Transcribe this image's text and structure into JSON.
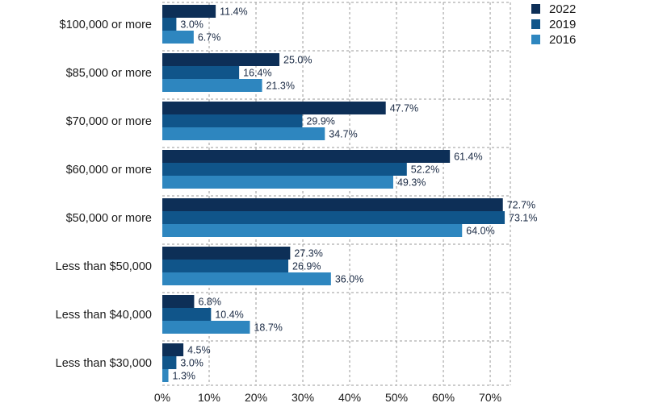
{
  "chart_data": {
    "type": "bar",
    "orientation": "horizontal",
    "categories": [
      "$100,000 or more",
      "$85,000 or more",
      "$70,000 or more",
      "$60,000 or more",
      "$50,000 or more",
      "Less than $50,000",
      "Less than $40,000",
      "Less than $30,000"
    ],
    "series": [
      {
        "name": "2022",
        "color": "#0d2f57",
        "values": [
          11.4,
          25.0,
          47.7,
          61.4,
          72.7,
          27.3,
          6.8,
          4.5
        ]
      },
      {
        "name": "2019",
        "color": "#10558a",
        "values": [
          3.0,
          16.4,
          29.9,
          52.2,
          73.1,
          26.9,
          10.4,
          3.0
        ]
      },
      {
        "name": "2016",
        "color": "#2e86bf",
        "values": [
          6.7,
          21.3,
          34.7,
          49.3,
          64.0,
          36.0,
          18.7,
          1.3
        ]
      }
    ],
    "value_labels": [
      [
        "11.4%",
        "25.0%",
        "47.7%",
        "61.4%",
        "72.7%",
        "27.3%",
        "6.8%",
        "4.5%"
      ],
      [
        "3.0%",
        "16.4%",
        "29.9%",
        "52.2%",
        "73.1%",
        "26.9%",
        "10.4%",
        "3.0%"
      ],
      [
        "6.7%",
        "21.3%",
        "34.7%",
        "49.3%",
        "64.0%",
        "36.0%",
        "18.7%",
        "1.3%"
      ]
    ],
    "xticks": [
      0,
      10,
      20,
      30,
      40,
      50,
      60,
      70
    ],
    "xtick_labels": [
      "0%",
      "10%",
      "20%",
      "30%",
      "40%",
      "50%",
      "60%",
      "70%"
    ],
    "xlim": [
      0,
      74.3
    ],
    "grid": true,
    "legend_position": "top-right",
    "title": "",
    "xlabel": "",
    "ylabel": ""
  }
}
